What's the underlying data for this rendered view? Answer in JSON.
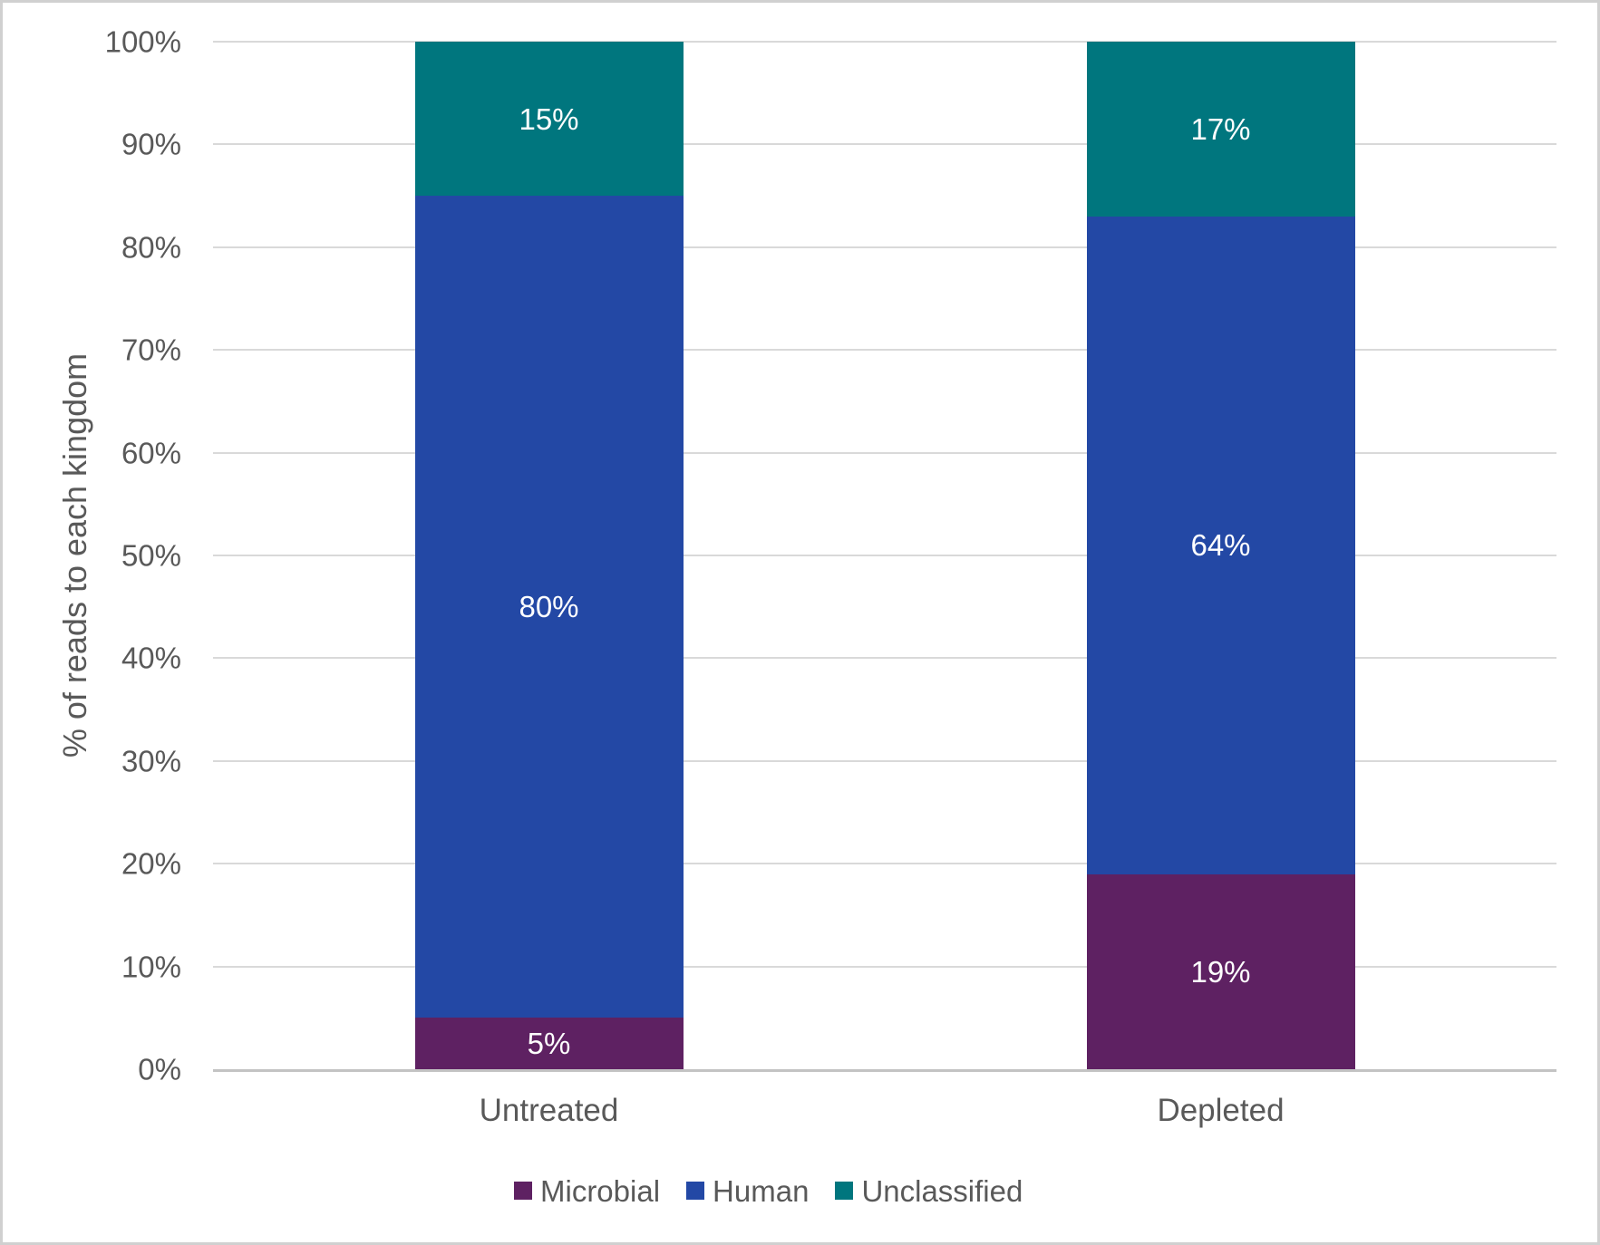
{
  "chart_data": {
    "type": "bar",
    "stacked": true,
    "title": "",
    "xlabel": "",
    "ylabel": "% of reads to each kingdom",
    "categories": [
      "Untreated",
      "Depleted"
    ],
    "series": [
      {
        "name": "Microbial",
        "color": "#5e2162",
        "values": [
          5,
          19
        ],
        "labels": [
          "5%",
          "19%"
        ]
      },
      {
        "name": "Human",
        "color": "#2348a5",
        "values": [
          80,
          64
        ],
        "labels": [
          "80%",
          "64%"
        ]
      },
      {
        "name": "Unclassified",
        "color": "#00767e",
        "values": [
          15,
          17
        ],
        "labels": [
          "15%",
          "17%"
        ]
      }
    ],
    "ylim": [
      0,
      100
    ],
    "yticks": [
      {
        "v": 0,
        "label": "0%"
      },
      {
        "v": 10,
        "label": "10%"
      },
      {
        "v": 20,
        "label": "20%"
      },
      {
        "v": 30,
        "label": "30%"
      },
      {
        "v": 40,
        "label": "40%"
      },
      {
        "v": 50,
        "label": "50%"
      },
      {
        "v": 60,
        "label": "60%"
      },
      {
        "v": 70,
        "label": "70%"
      },
      {
        "v": 80,
        "label": "80%"
      },
      {
        "v": 90,
        "label": "90%"
      },
      {
        "v": 100,
        "label": "100%"
      }
    ],
    "grid": true,
    "legend_position": "bottom"
  },
  "colors": {
    "text": "#595959",
    "data_label_text": "#ffffff",
    "gridline": "#d9d9d9",
    "axis_line": "#c3c3c3",
    "figure_border": "#d0d0d0",
    "background": "#ffffff"
  }
}
